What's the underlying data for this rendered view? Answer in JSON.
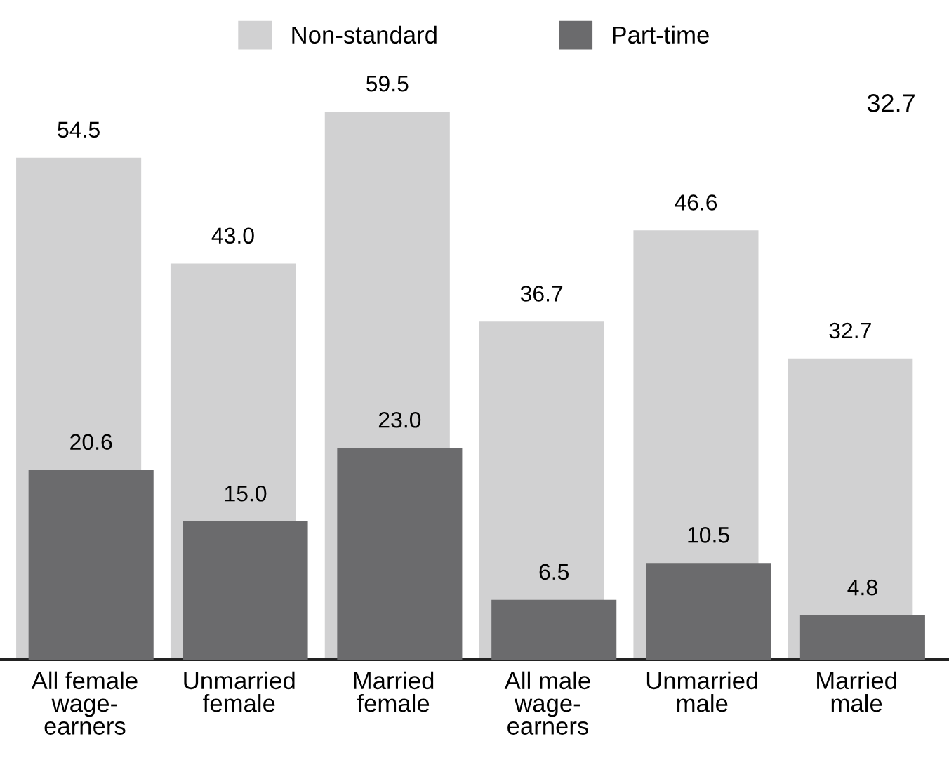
{
  "chart_data": {
    "type": "bar",
    "categories": [
      "All female\nwage-\nearners",
      "Unmarried\nfemale",
      "Married\nfemale",
      "All male\nwage-\nearners",
      "Unmarried\nmale",
      "Married\nmale"
    ],
    "series": [
      {
        "name": "Non-standard",
        "color": "#d1d1d2",
        "values": [
          54.5,
          43.0,
          59.5,
          36.7,
          46.6,
          32.7
        ],
        "value_labels": [
          "54.5",
          "43.0",
          "59.5",
          "36.7",
          "46.6",
          "32.7"
        ]
      },
      {
        "name": "Part-time",
        "color": "#6b6b6d",
        "values": [
          20.6,
          15.0,
          23.0,
          6.5,
          10.5,
          4.8
        ],
        "value_labels": [
          "20.6",
          "15.0",
          "23.0",
          "6.5",
          "10.5",
          "4.8"
        ]
      }
    ],
    "tick_labels": "x",
    "legend": "top",
    "grid": false,
    "annotations": [
      "32.7"
    ]
  }
}
